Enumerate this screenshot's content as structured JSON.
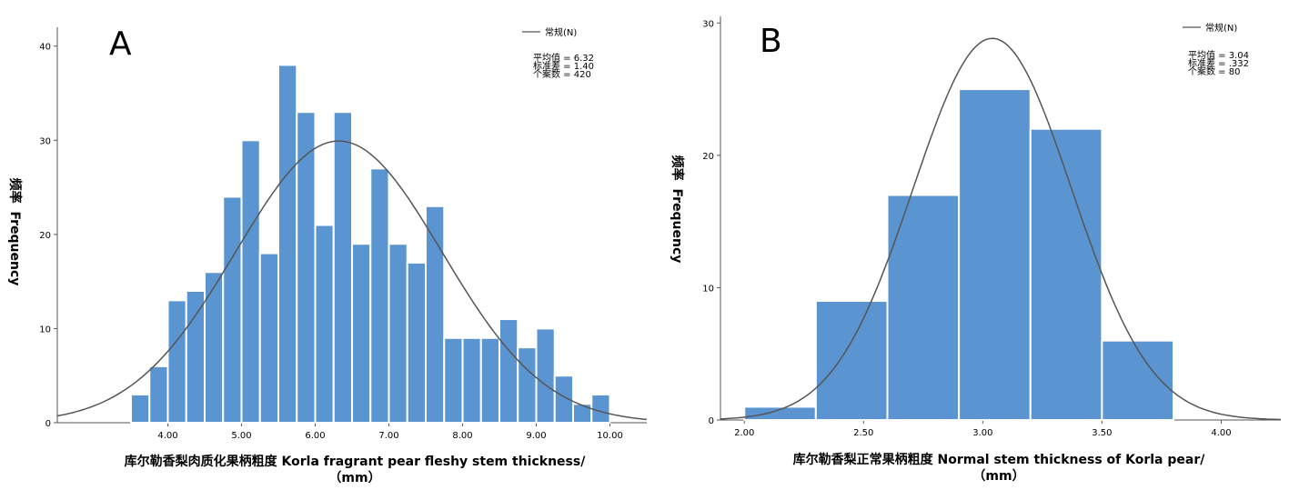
{
  "chart_data": [
    {
      "type": "bar",
      "panel_letter": "A",
      "xlabel_line1": "库尔勒香梨肉质化果柄粗度 Korla fragrant pear fleshy stem thickness/",
      "xlabel_line2": "（mm）",
      "ylabel_cn": "频率",
      "ylabel_en": "Frequency",
      "legend_label": "常规(N)",
      "stats": [
        "平均值 = 6.32",
        "标准差 = 1.40",
        "个案数 = 420"
      ],
      "x_ticks": [
        "4.00",
        "5.00",
        "6.00",
        "7.00",
        "8.00",
        "9.00",
        "10.00"
      ],
      "y_ticks": [
        "0",
        "10",
        "20",
        "30",
        "40"
      ],
      "xlim": [
        2.5,
        10.5
      ],
      "ylim": [
        0,
        42
      ],
      "bin_start": 3.5,
      "bin_width": 0.25,
      "values": [
        3,
        6,
        13,
        14,
        16,
        24,
        30,
        18,
        38,
        33,
        21,
        33,
        19,
        27,
        19,
        17,
        23,
        9,
        9,
        9,
        11,
        8,
        10,
        5,
        2,
        3
      ],
      "normal": {
        "mean": 6.32,
        "sd": 1.4,
        "n": 420
      }
    },
    {
      "type": "bar",
      "panel_letter": "B",
      "xlabel_line1": "库尔勒香梨正常果柄粗度 Normal stem thickness of Korla pear/",
      "xlabel_line2": "（mm）",
      "ylabel_cn": "频率",
      "ylabel_en": "Frequency",
      "legend_label": "常规(N)",
      "stats": [
        "平均值 = 3.04",
        "标准差 = .332",
        "个案数 = 80"
      ],
      "x_ticks": [
        "2.00",
        "2.50",
        "3.00",
        "3.50",
        "4.00"
      ],
      "y_ticks": [
        "0",
        "10",
        "20",
        "30"
      ],
      "xlim": [
        1.9,
        4.25
      ],
      "ylim": [
        0,
        30.5
      ],
      "bin_start": 2.0,
      "bin_width": 0.3,
      "values": [
        1,
        9,
        17,
        25,
        22,
        6
      ],
      "normal": {
        "mean": 3.04,
        "sd": 0.332,
        "n": 80
      }
    }
  ]
}
